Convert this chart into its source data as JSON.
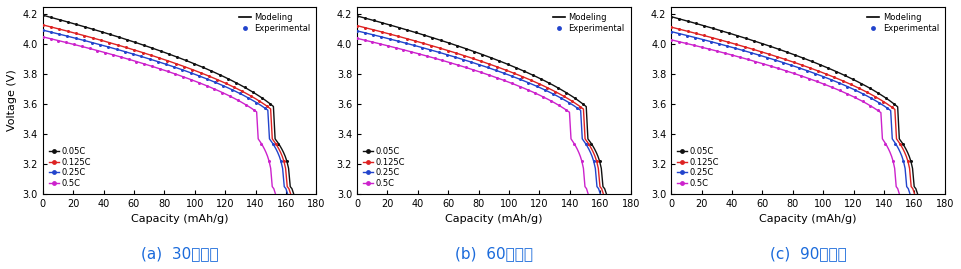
{
  "subplots": [
    {
      "title": "(a)  30사이클"
    },
    {
      "title": "(b)  60사이클"
    },
    {
      "title": "(c)  90사이클"
    }
  ],
  "rates": [
    "0.05C",
    "0.125C",
    "0.25C",
    "0.5C"
  ],
  "colors": [
    "#111111",
    "#dd2222",
    "#2244cc",
    "#cc22cc"
  ],
  "xlim": [
    0,
    180
  ],
  "ylim": [
    3.0,
    4.25
  ],
  "xticks": [
    0,
    20,
    40,
    60,
    80,
    100,
    120,
    140,
    160,
    180
  ],
  "yticks": [
    3.0,
    3.2,
    3.4,
    3.6,
    3.8,
    4.0,
    4.2
  ],
  "xlabel": "Capacity (mAh/g)",
  "ylabel": "Voltage (V)",
  "legend_modeling": "Modeling",
  "legend_experimental": "Experimental",
  "params": [
    [
      [
        165,
        4.195
      ],
      [
        163,
        4.13
      ],
      [
        161,
        4.095
      ],
      [
        153,
        4.05
      ]
    ],
    [
      [
        164,
        4.19
      ],
      [
        162,
        4.125
      ],
      [
        160,
        4.09
      ],
      [
        152,
        4.04
      ]
    ],
    [
      [
        162,
        4.185
      ],
      [
        160,
        4.115
      ],
      [
        157,
        4.085
      ],
      [
        150,
        4.03
      ]
    ]
  ],
  "figure_width": 9.61,
  "figure_height": 2.69,
  "dpi": 100,
  "label_color": "#1a6adb"
}
